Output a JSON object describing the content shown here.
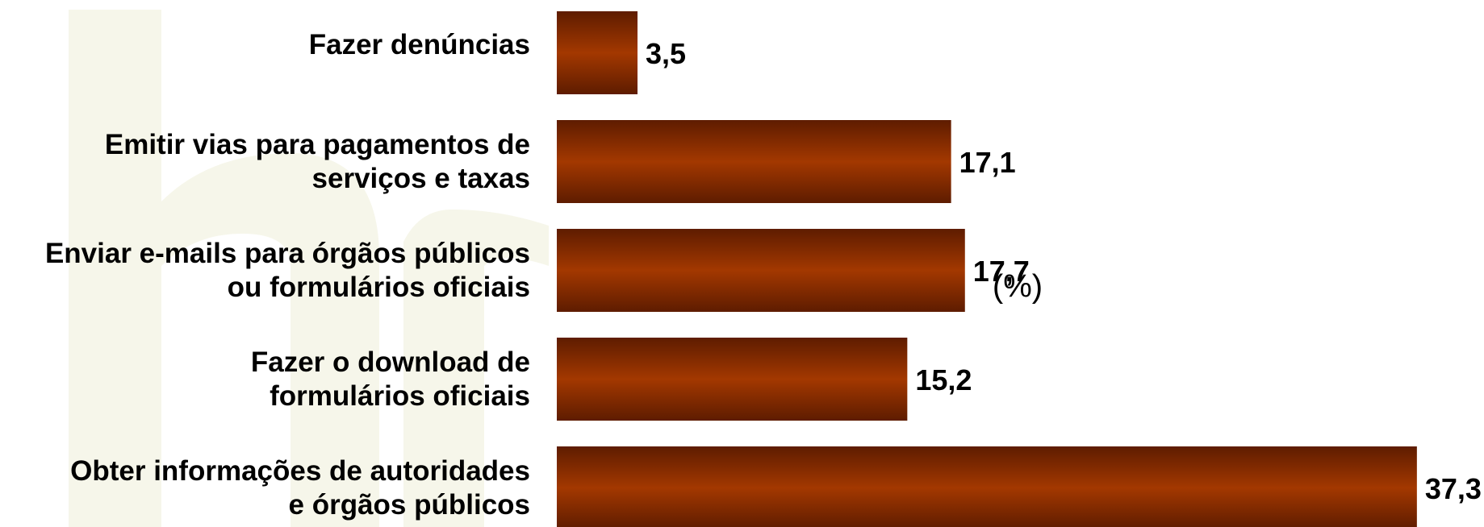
{
  "chart_data": {
    "type": "bar",
    "orientation": "horizontal",
    "categories": [
      "Fazer denúncias",
      "Emitir vias para pagamentos de\nserviços e taxas",
      "Enviar e-mails para órgãos públicos\nou formulários oficiais",
      "Fazer o download de\nformulários oficiais",
      "Obter informações de autoridades\ne órgãos públicos"
    ],
    "values": [
      3.5,
      17.1,
      17.7,
      15.2,
      37.3
    ],
    "value_labels": [
      "3,5",
      "17,1",
      "17,7",
      "15,2",
      "37,3"
    ],
    "color": "#9a3300",
    "xlim": [
      0,
      40
    ],
    "annotation": "(%)"
  }
}
